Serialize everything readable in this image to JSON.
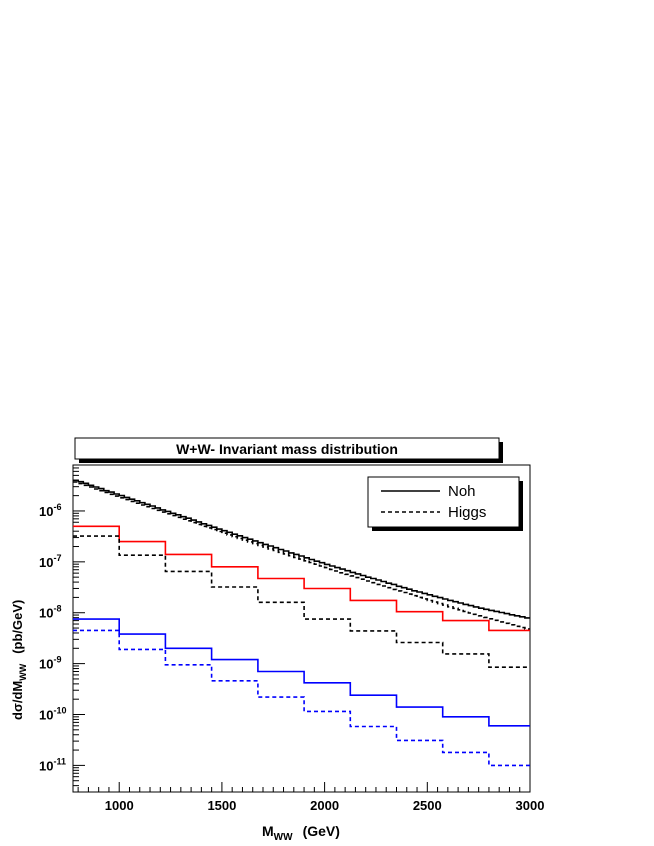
{
  "chart_data": {
    "type": "line",
    "title": "W+W- Invariant mass distribution",
    "xlabel": {
      "main": "M",
      "sub": "WW",
      "unit": "(GeV)"
    },
    "ylabel": {
      "prefix": "dσ/dM",
      "sub": "WW",
      "unit": "(pb/GeV)"
    },
    "xlim": [
      775,
      3000
    ],
    "ylim": [
      3e-12,
      8e-06
    ],
    "yscale": "log",
    "x_ticks": [
      1000,
      1500,
      2000,
      2500,
      3000
    ],
    "x_tick_labels": [
      "1000",
      "1500",
      "2000",
      "2500",
      "3000"
    ],
    "y_ticks": [
      1e-11,
      1e-10,
      1e-09,
      1e-08,
      1e-07,
      1e-06
    ],
    "y_tick_labels": [
      {
        "base": "10",
        "exp": "-11"
      },
      {
        "base": "10",
        "exp": "-10"
      },
      {
        "base": "10",
        "exp": "-9"
      },
      {
        "base": "10",
        "exp": "-8"
      },
      {
        "base": "10",
        "exp": "-7"
      },
      {
        "base": "10",
        "exp": "-6"
      }
    ],
    "grid": false,
    "legend_position": "top-right",
    "legend": [
      {
        "label": "Noh",
        "color": "#000000",
        "dash": "solid"
      },
      {
        "label": "Higgs",
        "color": "#000000",
        "dash": "dashed"
      }
    ],
    "coarse_bin_edges": [
      775,
      1000,
      1225,
      1450,
      1675,
      1900,
      2125,
      2350,
      2575,
      2800,
      3000
    ],
    "fine_bin_start": 775,
    "fine_bin_width": 25,
    "series": [
      {
        "color": "#000000",
        "dash": "solid",
        "binning": "fine",
        "values": [
          4e-06,
          3.75e-06,
          3.5e-06,
          3.2e-06,
          2.95e-06,
          2.75e-06,
          2.5e-06,
          2.35e-06,
          2.15e-06,
          2e-06,
          1.85e-06,
          1.7e-06,
          1.58e-06,
          1.45e-06,
          1.35e-06,
          1.25e-06,
          1.15e-06,
          1.05e-06,
          9.8e-07,
          9e-07,
          8.4e-07,
          7.7e-07,
          7.2e-07,
          6.6e-07,
          6.1e-07,
          5.6e-07,
          5.2e-07,
          4.8e-07,
          4.4e-07,
          4.1e-07,
          3.8e-07,
          3.5e-07,
          3.25e-07,
          3e-07,
          2.78e-07,
          2.58e-07,
          2.38e-07,
          2.2e-07,
          2.05e-07,
          1.9e-07,
          1.75e-07,
          1.63e-07,
          1.5e-07,
          1.4e-07,
          1.3e-07,
          1.2e-07,
          1.11e-07,
          1.03e-07,
          9.6e-08,
          8.9e-08,
          8.3e-08,
          7.7e-08,
          7.2e-08,
          6.7e-08,
          6.2e-08,
          5.8e-08,
          5.4e-08,
          5e-08,
          4.7e-08,
          4.4e-08,
          4.1e-08,
          3.8e-08,
          3.6e-08,
          3.3e-08,
          3.1e-08,
          2.9e-08,
          2.7e-08,
          2.55e-08,
          2.4e-08,
          2.25e-08,
          2.1e-08,
          1.98e-08,
          1.86e-08,
          1.75e-08,
          1.65e-08,
          1.55e-08,
          1.46e-08,
          1.38e-08,
          1.3e-08,
          1.23e-08,
          1.17e-08,
          1.11e-08,
          1.06e-08,
          1.01e-08,
          9.6e-09,
          9.1e-09,
          8.7e-09,
          8.3e-09,
          7.9e-09
        ]
      },
      {
        "color": "#000000",
        "dash": "dashed",
        "binning": "fine",
        "values": [
          3.7e-06,
          3.45e-06,
          3.2e-06,
          2.95e-06,
          2.7e-06,
          2.5e-06,
          2.3e-06,
          2.12e-06,
          1.96e-06,
          1.81e-06,
          1.67e-06,
          1.54e-06,
          1.42e-06,
          1.31e-06,
          1.21e-06,
          1.12e-06,
          1.03e-06,
          9.5e-07,
          8.8e-07,
          8.1e-07,
          7.5e-07,
          6.9e-07,
          6.4e-07,
          5.9e-07,
          5.45e-07,
          5e-07,
          4.65e-07,
          4.3e-07,
          3.95e-07,
          3.65e-07,
          3.38e-07,
          3.12e-07,
          2.88e-07,
          2.66e-07,
          2.46e-07,
          2.28e-07,
          2.1e-07,
          1.95e-07,
          1.8e-07,
          1.67e-07,
          1.54e-07,
          1.43e-07,
          1.32e-07,
          1.22e-07,
          1.13e-07,
          1.05e-07,
          9.7e-08,
          9e-08,
          8.3e-08,
          7.7e-08,
          7.1e-08,
          6.6e-08,
          6.1e-08,
          5.7e-08,
          5.3e-08,
          4.9e-08,
          4.55e-08,
          4.2e-08,
          3.9e-08,
          3.6e-08,
          3.35e-08,
          3.1e-08,
          2.88e-08,
          2.68e-08,
          2.5e-08,
          2.32e-08,
          2.16e-08,
          2e-08,
          1.87e-08,
          1.74e-08,
          1.62e-08,
          1.51e-08,
          1.41e-08,
          1.31e-08,
          1.22e-08,
          1.14e-08,
          1.06e-08,
          9.9e-09,
          9.3e-09,
          8.7e-09,
          8.1e-09,
          7.6e-09,
          7.1e-09,
          6.6e-09,
          6.2e-09,
          5.8e-09,
          5.4e-09,
          5.1e-09,
          4.8e-09
        ]
      },
      {
        "color": "#ff0000",
        "dash": "solid",
        "binning": "coarse",
        "values": [
          5e-07,
          2.5e-07,
          1.4e-07,
          8e-08,
          4.7e-08,
          3e-08,
          1.75e-08,
          1.05e-08,
          7e-09,
          4.5e-09
        ]
      },
      {
        "color": "#000000",
        "dash": "dashed",
        "binning": "coarse",
        "values": [
          3.2e-07,
          1.35e-07,
          6.5e-08,
          3.2e-08,
          1.6e-08,
          7.5e-09,
          4.4e-09,
          2.6e-09,
          1.55e-09,
          8.5e-10
        ]
      },
      {
        "color": "#0000ff",
        "dash": "solid",
        "binning": "coarse",
        "values": [
          7.5e-09,
          3.8e-09,
          2e-09,
          1.2e-09,
          7e-10,
          4.2e-10,
          2.4e-10,
          1.4e-10,
          9e-11,
          6e-11
        ]
      },
      {
        "color": "#0000ff",
        "dash": "dashed",
        "binning": "coarse",
        "values": [
          4.5e-09,
          1.9e-09,
          9.5e-10,
          4.6e-10,
          2.2e-10,
          1.15e-10,
          5.8e-11,
          3.1e-11,
          1.8e-11,
          1e-11
        ]
      }
    ]
  }
}
